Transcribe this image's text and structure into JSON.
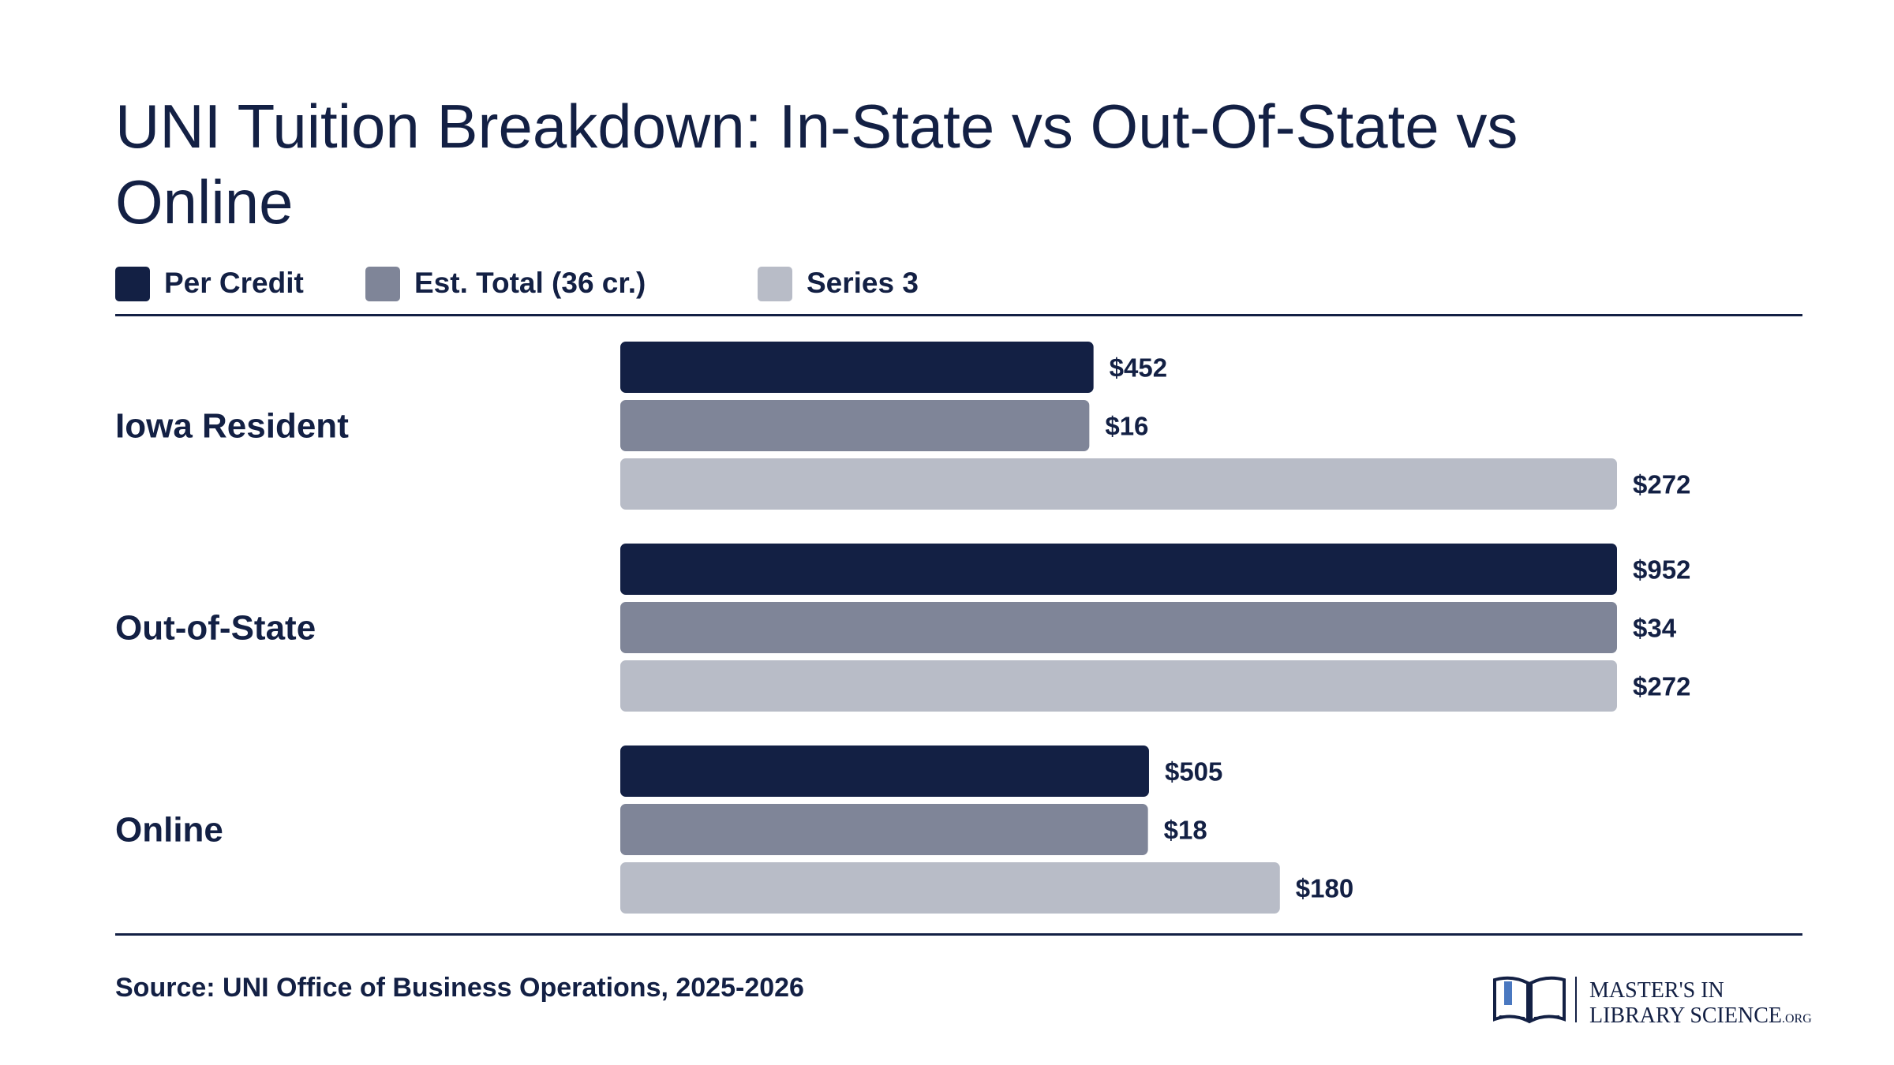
{
  "title": "UNI Tuition Breakdown: In-State vs Out-Of-State vs Online",
  "legend": [
    {
      "label": "Per Credit",
      "color": "#132044"
    },
    {
      "label": "Est. Total (36 cr.)",
      "color": "#7f8598"
    },
    {
      "label": "Series 3",
      "color": "#b8bcc7"
    }
  ],
  "source": "Source: UNI Office of Business Operations, 2025-2026",
  "logo": {
    "line1": "MASTER'S IN",
    "line2": "LIBRARY SCIENCE",
    "suffix": ".ORG",
    "icon": "open-book-icon"
  },
  "chart_data": {
    "type": "bar",
    "orientation": "horizontal",
    "categories": [
      "Iowa Resident",
      "Out-of-State",
      "Online"
    ],
    "series": [
      {
        "name": "Per Credit",
        "color": "#132044",
        "values": [
          452,
          952,
          505
        ],
        "labels": [
          "$452",
          "$952",
          "$505"
        ]
      },
      {
        "name": "Est. Total (36 cr.)",
        "color": "#7f8598",
        "values": [
          16,
          34,
          18
        ],
        "labels": [
          "$16",
          "$34",
          "$18"
        ]
      },
      {
        "name": "Series 3",
        "color": "#b8bcc7",
        "values": [
          272,
          272,
          180
        ],
        "labels": [
          "$272",
          "$272",
          "$180"
        ]
      }
    ],
    "series_max": [
      952,
      34,
      272
    ],
    "legend_position": "top-left",
    "grid": false
  }
}
